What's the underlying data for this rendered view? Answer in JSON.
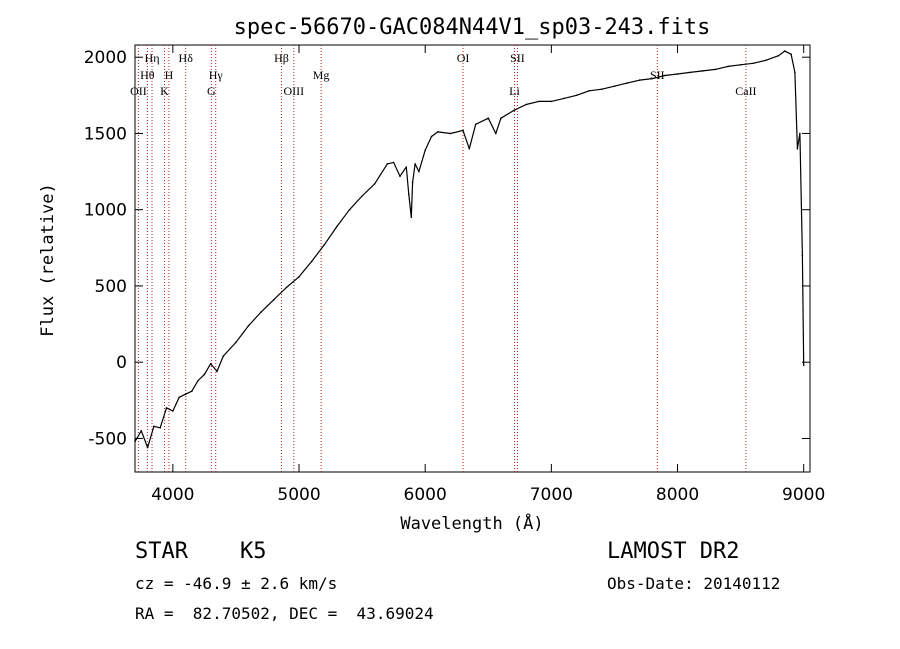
{
  "chart_data": {
    "type": "line",
    "title": "spec-56670-GAC084N44V1_sp03-243.fits",
    "xlabel": "Wavelength (Å)",
    "ylabel": "Flux (relative)",
    "xlim": [
      3700,
      9050
    ],
    "ylim": [
      -720,
      2080
    ],
    "x_ticks": [
      4000,
      5000,
      6000,
      7000,
      8000,
      9000
    ],
    "y_ticks": [
      -500,
      0,
      500,
      1000,
      1500,
      2000
    ],
    "grid": false,
    "line_color": "#000000",
    "marker_color": "#b22222",
    "series": [
      {
        "x": [
          3700,
          3750,
          3800,
          3850,
          3900,
          3950,
          4000,
          4050,
          4100,
          4150,
          4200,
          4250,
          4300,
          4350,
          4400,
          4500,
          4600,
          4700,
          4800,
          4900,
          5000,
          5100,
          5200,
          5300,
          5400,
          5500,
          5600,
          5700,
          5750,
          5800,
          5850,
          5870,
          5890,
          5900,
          5920,
          5950,
          6000,
          6050,
          6100,
          6200,
          6300,
          6350,
          6400,
          6500,
          6560,
          6600,
          6700,
          6800,
          6900,
          7000,
          7100,
          7200,
          7300,
          7400,
          7500,
          7600,
          7700,
          7800,
          7900,
          8000,
          8100,
          8200,
          8300,
          8400,
          8500,
          8600,
          8700,
          8800,
          8850,
          8900,
          8930,
          8950,
          8970,
          8990,
          9000
        ],
        "y": [
          -520,
          -450,
          -560,
          -420,
          -430,
          -300,
          -320,
          -230,
          -210,
          -190,
          -120,
          -80,
          -10,
          -60,
          40,
          130,
          240,
          330,
          410,
          490,
          560,
          660,
          770,
          890,
          1000,
          1090,
          1170,
          1300,
          1310,
          1220,
          1280,
          1100,
          950,
          1180,
          1300,
          1250,
          1390,
          1480,
          1510,
          1500,
          1520,
          1400,
          1560,
          1600,
          1500,
          1600,
          1650,
          1690,
          1710,
          1710,
          1730,
          1750,
          1780,
          1790,
          1810,
          1830,
          1850,
          1860,
          1880,
          1890,
          1900,
          1910,
          1920,
          1940,
          1950,
          1960,
          1980,
          2010,
          2040,
          2020,
          1900,
          1400,
          1500,
          700,
          -20
        ]
      }
    ],
    "line_markers": [
      {
        "label": "OII",
        "x": 3727,
        "row": 3
      },
      {
        "label": "Hθ",
        "x": 3798,
        "row": 2
      },
      {
        "label": "Hη",
        "x": 3835,
        "row": 1
      },
      {
        "label": "K",
        "x": 3934,
        "row": 3
      },
      {
        "label": "H",
        "x": 3969,
        "row": 2
      },
      {
        "label": "Hδ",
        "x": 4102,
        "row": 1
      },
      {
        "label": "G",
        "x": 4305,
        "row": 3
      },
      {
        "label": "Hγ",
        "x": 4340,
        "row": 2
      },
      {
        "label": "Hβ",
        "x": 4861,
        "row": 1
      },
      {
        "label": "OIII",
        "x": 4959,
        "row": 3
      },
      {
        "label": "Mg",
        "x": 5175,
        "row": 2
      },
      {
        "label": "OI",
        "x": 6300,
        "row": 1
      },
      {
        "label": "Li",
        "x": 6708,
        "row": 3
      },
      {
        "label": "SII",
        "x": 6731,
        "row": 1
      },
      {
        "label": "SII",
        "x": 7840,
        "row": 2
      },
      {
        "label": "CaII",
        "x": 8542,
        "row": 3
      }
    ]
  },
  "info": {
    "class_label": "STAR",
    "subclass_label": "K5",
    "survey_label": "LAMOST DR2",
    "cz_text": "cz = -46.9 ± 2.6 km/s",
    "obs_date_text": "Obs-Date: 20140112",
    "coords_text": "RA =  82.70502, DEC =  43.69024"
  }
}
